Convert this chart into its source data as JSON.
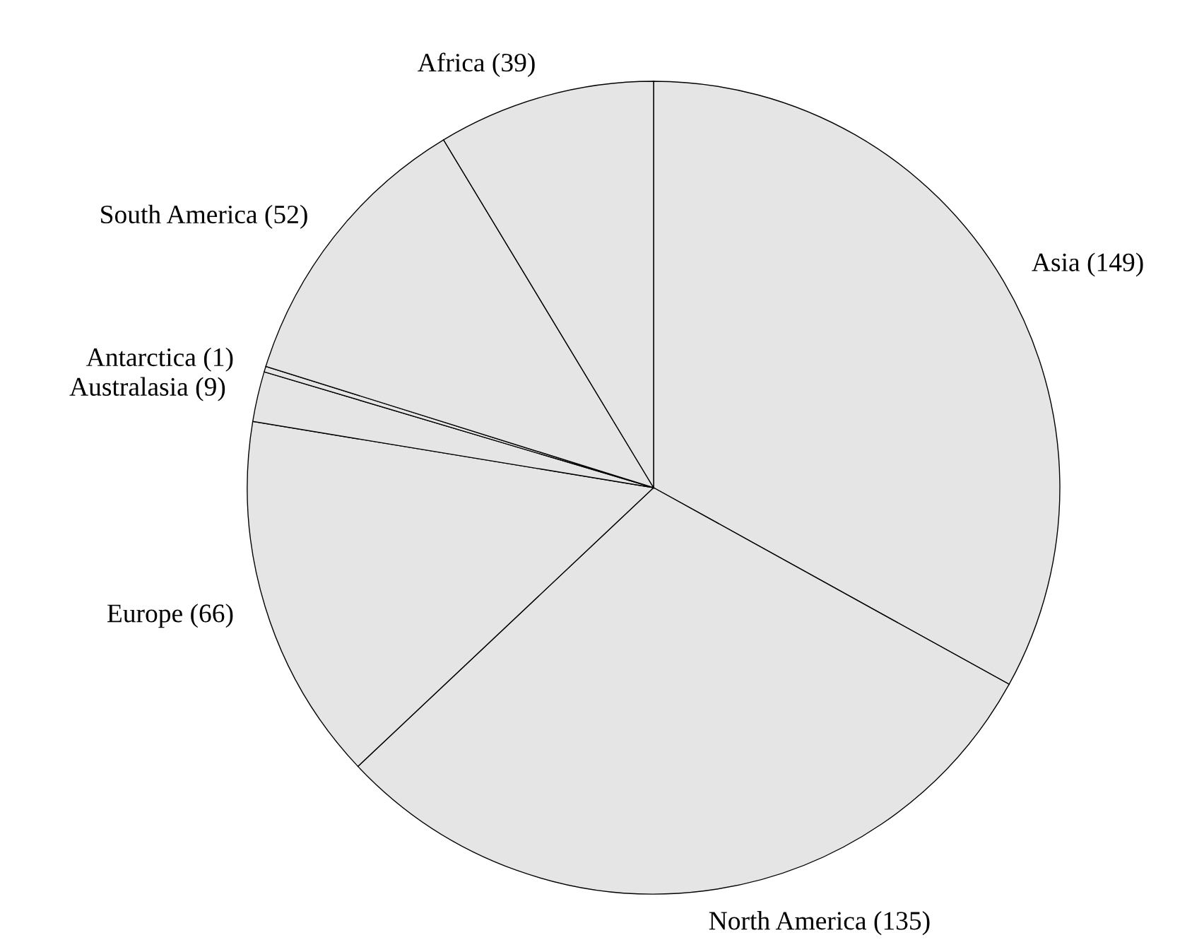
{
  "chart_data": {
    "type": "pie",
    "categories": [
      "Asia (149)",
      "North America (135)",
      "Europe (66)",
      "Australasia (9)",
      "Antarctica (1)",
      "South America (52)",
      "Africa (39)"
    ],
    "values": [
      149,
      135,
      66,
      9,
      1,
      52,
      39
    ],
    "colors": [
      "#e5e5e5",
      "#e5e5e5",
      "#e5e5e5",
      "#e5e5e5",
      "#e5e5e5",
      "#e5e5e5",
      "#e5e5e5"
    ]
  }
}
